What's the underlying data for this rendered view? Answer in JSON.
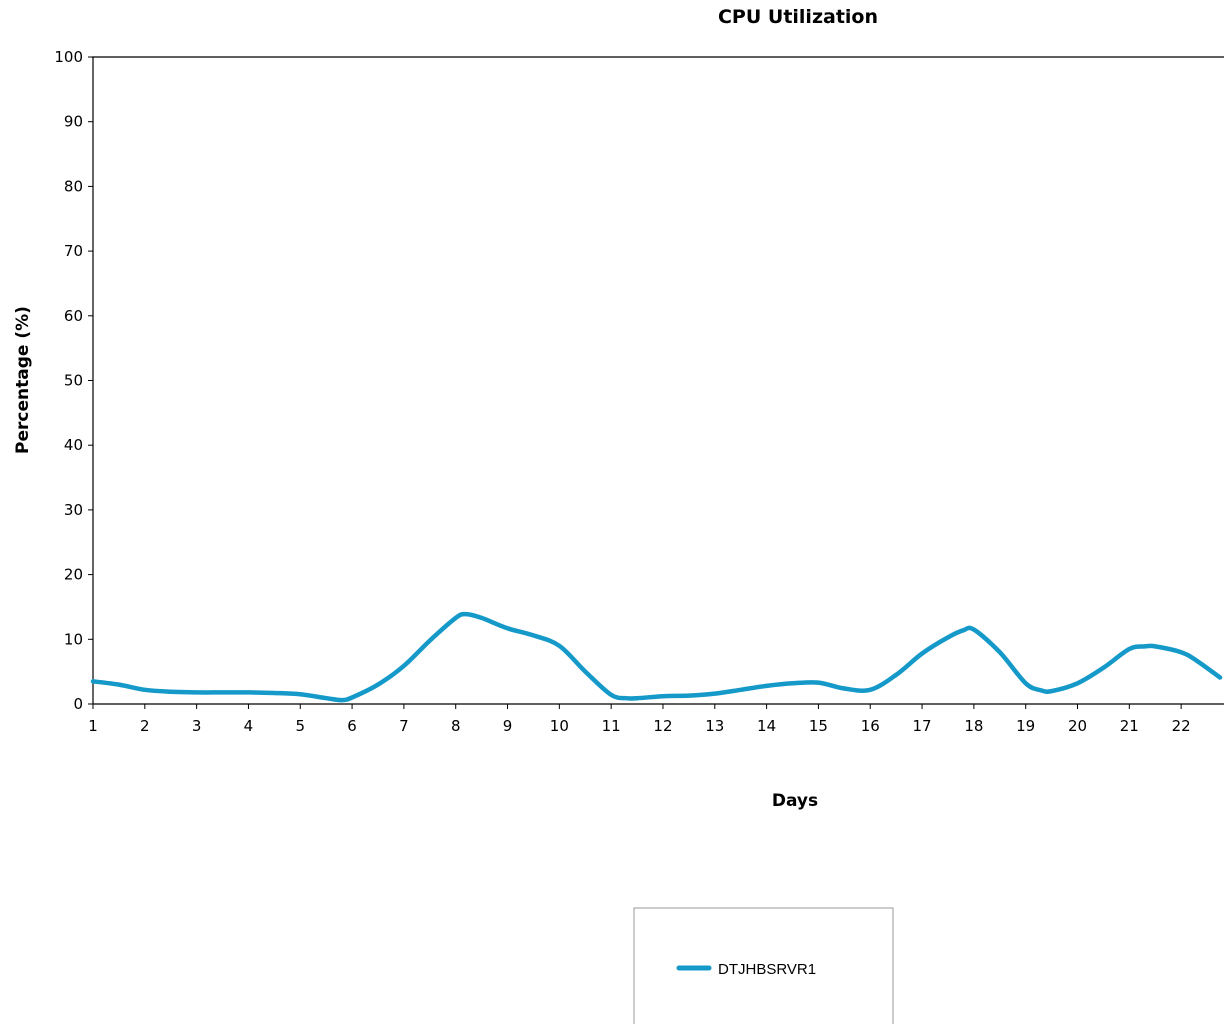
{
  "chart_data": {
    "type": "line",
    "title": "CPU Utilization",
    "xlabel": "Days",
    "ylabel": "Percentage (%)",
    "ylim": [
      0,
      100
    ],
    "yticks": [
      0,
      10,
      20,
      30,
      40,
      50,
      60,
      70,
      80,
      90,
      100
    ],
    "xlim": [
      1,
      22.75
    ],
    "xticks": [
      1,
      2,
      3,
      4,
      5,
      6,
      7,
      8,
      9,
      10,
      11,
      12,
      13,
      14,
      15,
      16,
      17,
      18,
      19,
      20,
      21,
      22
    ],
    "grid": false,
    "legend_position": "bottom",
    "series": [
      {
        "name": "DTJHBSRVR1",
        "color": "#1499c9",
        "x": [
          1,
          1.5,
          2,
          2.5,
          3,
          3.5,
          4,
          4.5,
          5,
          5.5,
          5.8,
          6,
          6.5,
          7,
          7.5,
          8,
          8.2,
          8.5,
          9,
          9.5,
          10,
          10.5,
          11,
          11.3,
          11.5,
          12,
          12.5,
          13,
          13.5,
          14,
          14.5,
          15,
          15.5,
          16,
          16.5,
          17,
          17.5,
          17.8,
          18,
          18.5,
          19,
          19.3,
          19.5,
          20,
          20.5,
          21,
          21.3,
          21.5,
          22,
          22.3,
          22.75
        ],
        "values": [
          3.5,
          3.0,
          2.2,
          1.9,
          1.8,
          1.8,
          1.8,
          1.7,
          1.5,
          0.9,
          0.6,
          1.0,
          3.0,
          5.9,
          9.8,
          13.3,
          13.9,
          13.3,
          11.7,
          10.6,
          9.0,
          5.0,
          1.4,
          0.9,
          0.9,
          1.2,
          1.3,
          1.6,
          2.2,
          2.8,
          3.2,
          3.3,
          2.4,
          2.2,
          4.5,
          7.8,
          10.3,
          11.4,
          11.5,
          8.0,
          3.2,
          2.1,
          2.0,
          3.2,
          5.6,
          8.5,
          8.9,
          8.9,
          8.0,
          6.7,
          4.1
        ]
      }
    ]
  }
}
